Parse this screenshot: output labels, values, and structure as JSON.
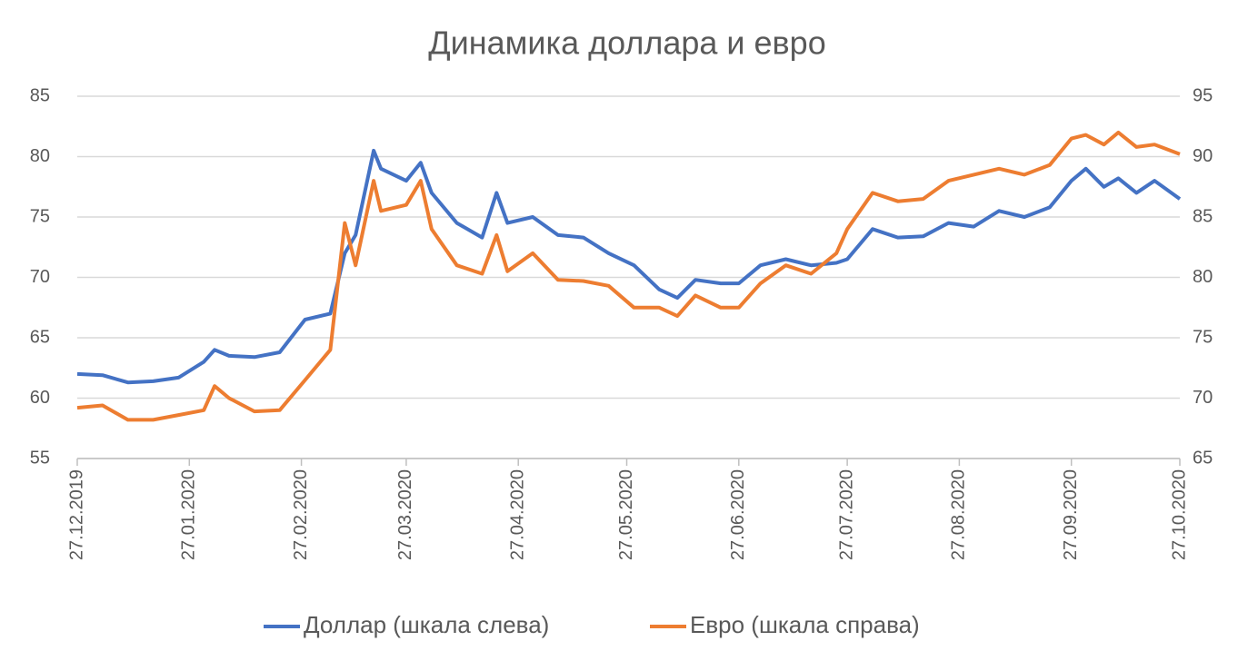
{
  "chart_data": {
    "type": "line",
    "title": "Динамика доллара и евро",
    "x": [
      "2019-12-27",
      "2020-01-03",
      "2020-01-10",
      "2020-01-17",
      "2020-01-24",
      "2020-01-31",
      "2020-02-03",
      "2020-02-07",
      "2020-02-14",
      "2020-02-21",
      "2020-02-28",
      "2020-03-06",
      "2020-03-10",
      "2020-03-13",
      "2020-03-18",
      "2020-03-20",
      "2020-03-27",
      "2020-03-31",
      "2020-04-03",
      "2020-04-10",
      "2020-04-17",
      "2020-04-21",
      "2020-04-24",
      "2020-05-01",
      "2020-05-08",
      "2020-05-15",
      "2020-05-22",
      "2020-05-29",
      "2020-06-05",
      "2020-06-10",
      "2020-06-15",
      "2020-06-22",
      "2020-06-27",
      "2020-07-03",
      "2020-07-10",
      "2020-07-17",
      "2020-07-24",
      "2020-07-27",
      "2020-08-03",
      "2020-08-10",
      "2020-08-17",
      "2020-08-24",
      "2020-08-31",
      "2020-09-07",
      "2020-09-14",
      "2020-09-21",
      "2020-09-27",
      "2020-10-01",
      "2020-10-06",
      "2020-10-10",
      "2020-10-15",
      "2020-10-20",
      "2020-10-27"
    ],
    "series": [
      {
        "name": "Доллар (шкала слева)",
        "color": "#4472c4",
        "axis": "y",
        "values": [
          62.0,
          61.9,
          61.3,
          61.4,
          61.7,
          63.0,
          64.0,
          63.5,
          63.4,
          63.8,
          66.5,
          67.0,
          72.0,
          73.5,
          80.5,
          79.0,
          78.0,
          79.5,
          77.0,
          74.5,
          73.3,
          77.0,
          74.5,
          75.0,
          73.5,
          73.3,
          72.0,
          71.0,
          69.0,
          68.3,
          69.8,
          69.5,
          69.5,
          71.0,
          71.5,
          71.0,
          71.2,
          71.5,
          74.0,
          73.3,
          73.4,
          74.5,
          74.2,
          75.5,
          75.0,
          75.8,
          78.0,
          79.0,
          77.5,
          78.2,
          77.0,
          78.0,
          76.5
        ]
      },
      {
        "name": "Евро (шкала справа)",
        "color": "#ed7d31",
        "axis": "y2",
        "values": [
          69.2,
          69.4,
          68.2,
          68.2,
          68.6,
          69.0,
          71.0,
          70.0,
          68.9,
          69.0,
          71.5,
          74.0,
          84.5,
          81.0,
          88.0,
          85.5,
          86.0,
          88.0,
          84.0,
          81.0,
          80.3,
          83.5,
          80.5,
          82.0,
          79.8,
          79.7,
          79.3,
          77.5,
          77.5,
          76.8,
          78.5,
          77.5,
          77.5,
          79.5,
          81.0,
          80.3,
          82.0,
          84.0,
          87.0,
          86.3,
          86.5,
          88.0,
          88.5,
          89.0,
          88.5,
          89.3,
          91.5,
          91.8,
          91.0,
          92.0,
          90.8,
          91.0,
          90.2
        ]
      }
    ],
    "xlim": [
      "2019-12-27",
      "2020-10-27"
    ],
    "xticks": [
      {
        "value": "2019-12-27",
        "label": "27.12.2019"
      },
      {
        "value": "2020-01-27",
        "label": "27.01.2020"
      },
      {
        "value": "2020-02-27",
        "label": "27.02.2020"
      },
      {
        "value": "2020-03-27",
        "label": "27.03.2020"
      },
      {
        "value": "2020-04-27",
        "label": "27.04.2020"
      },
      {
        "value": "2020-05-27",
        "label": "27.05.2020"
      },
      {
        "value": "2020-06-27",
        "label": "27.06.2020"
      },
      {
        "value": "2020-07-27",
        "label": "27.07.2020"
      },
      {
        "value": "2020-08-27",
        "label": "27.08.2020"
      },
      {
        "value": "2020-09-27",
        "label": "27.09.2020"
      },
      {
        "value": "2020-10-27",
        "label": "27.10.2020"
      }
    ],
    "ylim": [
      55,
      85
    ],
    "yticks": [
      55,
      60,
      65,
      70,
      75,
      80,
      85
    ],
    "y2lim": [
      65,
      95
    ],
    "y2ticks": [
      65,
      70,
      75,
      80,
      85,
      90,
      95
    ],
    "grid": true,
    "legend": "bottom"
  }
}
